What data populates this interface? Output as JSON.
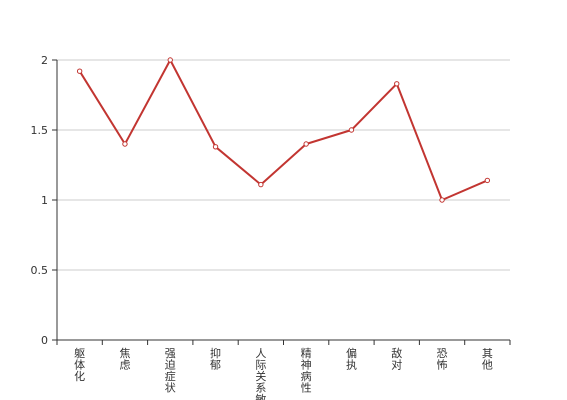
{
  "chart_data": {
    "type": "line",
    "title": "",
    "xlabel": "",
    "ylabel": "",
    "categories": [
      "躯体化",
      "焦虑",
      "强迫症状",
      "抑郁",
      "人际关系敏感",
      "精神病性",
      "偏执",
      "敌对",
      "恐怖",
      "其他"
    ],
    "series": [
      {
        "values": [
          1.92,
          1.4,
          2.0,
          1.38,
          1.11,
          1.4,
          1.5,
          1.83,
          1.0,
          1.14
        ]
      }
    ],
    "ylim": [
      0,
      2
    ],
    "yticks": [
      0,
      0.5,
      1,
      1.5,
      2
    ],
    "ytick_labels": [
      "0",
      "0.5",
      "1",
      "1.5",
      "2"
    ],
    "grid": true,
    "legend": "none",
    "colors": {
      "line": "#c23531",
      "grid": "#cccccc",
      "axis": "#333333",
      "text": "#333333",
      "marker_fill": "#ffffff"
    }
  }
}
